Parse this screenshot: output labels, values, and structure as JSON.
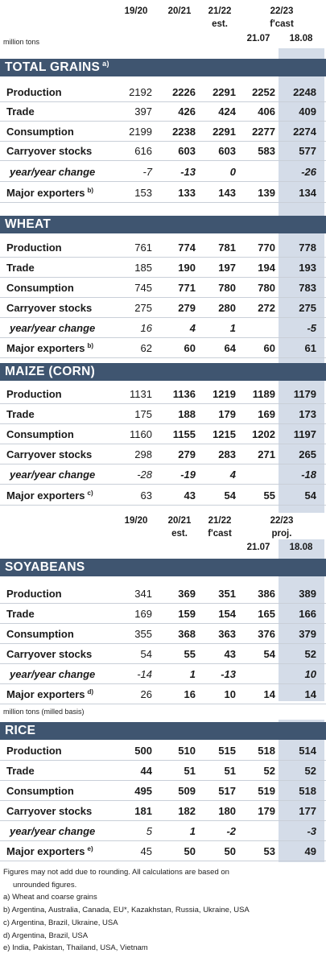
{
  "header1": {
    "c1": "19/20",
    "c2": "20/21",
    "c3": "21/22",
    "c3b": "est.",
    "c4": "22/23",
    "c4b": "f'cast",
    "d1": "21.07",
    "d2": "18.08"
  },
  "header1_unit": "million tons",
  "header2": {
    "c1": "19/20",
    "c2": "20/21",
    "c2b": "est.",
    "c3": "21/22",
    "c3b": "f'cast",
    "c4": "22/23",
    "c4b": "proj.",
    "d1": "21.07",
    "d2": "18.08"
  },
  "rice_unit": "million tons (milled basis)",
  "sections": {
    "total_grains": {
      "title": "TOTAL GRAINS",
      "sup": "a)",
      "rows": [
        {
          "label": "Production",
          "sup": "",
          "v": [
            "2192",
            "2226",
            "2291",
            "2252",
            "2248"
          ]
        },
        {
          "label": "Trade",
          "sup": "",
          "v": [
            "397",
            "426",
            "424",
            "406",
            "409"
          ]
        },
        {
          "label": "Consumption",
          "sup": "",
          "v": [
            "2199",
            "2238",
            "2291",
            "2277",
            "2274"
          ]
        },
        {
          "label": "Carryover stocks",
          "sup": "",
          "v": [
            "616",
            "603",
            "603",
            "583",
            "577"
          ]
        },
        {
          "label": "year/year change",
          "sup": "",
          "v": [
            "-7",
            "-13",
            "0",
            "",
            "-26"
          ]
        },
        {
          "label": "Major exporters",
          "sup": "b)",
          "v": [
            "153",
            "133",
            "143",
            "139",
            "134"
          ]
        }
      ]
    },
    "wheat": {
      "title": "WHEAT",
      "sup": "",
      "rows": [
        {
          "label": "Production",
          "sup": "",
          "v": [
            "761",
            "774",
            "781",
            "770",
            "778"
          ]
        },
        {
          "label": "Trade",
          "sup": "",
          "v": [
            "185",
            "190",
            "197",
            "194",
            "193"
          ]
        },
        {
          "label": "Consumption",
          "sup": "",
          "v": [
            "745",
            "771",
            "780",
            "780",
            "783"
          ]
        },
        {
          "label": "Carryover stocks",
          "sup": "",
          "v": [
            "275",
            "279",
            "280",
            "272",
            "275"
          ]
        },
        {
          "label": "year/year change",
          "sup": "",
          "v": [
            "16",
            "4",
            "1",
            "",
            "-5"
          ]
        },
        {
          "label": "Major exporters",
          "sup": "b)",
          "v": [
            "62",
            "60",
            "64",
            "60",
            "61"
          ]
        }
      ]
    },
    "maize": {
      "title": "MAIZE (CORN)",
      "sup": "",
      "rows": [
        {
          "label": "Production",
          "sup": "",
          "v": [
            "1131",
            "1136",
            "1219",
            "1189",
            "1179"
          ]
        },
        {
          "label": "Trade",
          "sup": "",
          "v": [
            "175",
            "188",
            "179",
            "169",
            "173"
          ]
        },
        {
          "label": "Consumption",
          "sup": "",
          "v": [
            "1160",
            "1155",
            "1215",
            "1202",
            "1197"
          ]
        },
        {
          "label": "Carryover stocks",
          "sup": "",
          "v": [
            "298",
            "279",
            "283",
            "271",
            "265"
          ]
        },
        {
          "label": "year/year change",
          "sup": "",
          "v": [
            "-28",
            "-19",
            "4",
            "",
            "-18"
          ]
        },
        {
          "label": "Major exporters",
          "sup": "c)",
          "v": [
            "63",
            "43",
            "54",
            "55",
            "54"
          ]
        }
      ]
    },
    "soyabeans": {
      "title": "SOYABEANS",
      "sup": "",
      "rows": [
        {
          "label": "Production",
          "sup": "",
          "v": [
            "341",
            "369",
            "351",
            "386",
            "389"
          ]
        },
        {
          "label": "Trade",
          "sup": "",
          "v": [
            "169",
            "159",
            "154",
            "165",
            "166"
          ]
        },
        {
          "label": "Consumption",
          "sup": "",
          "v": [
            "355",
            "368",
            "363",
            "376",
            "379"
          ]
        },
        {
          "label": "Carryover stocks",
          "sup": "",
          "v": [
            "54",
            "55",
            "43",
            "54",
            "52"
          ]
        },
        {
          "label": "year/year change",
          "sup": "",
          "v": [
            "-14",
            "1",
            "-13",
            "",
            "10"
          ]
        },
        {
          "label": "Major exporters",
          "sup": "d)",
          "v": [
            "26",
            "16",
            "10",
            "14",
            "14"
          ]
        }
      ]
    },
    "rice": {
      "title": "RICE",
      "sup": "",
      "rows": [
        {
          "label": "Production",
          "sup": "",
          "v": [
            "500",
            "510",
            "515",
            "518",
            "514"
          ]
        },
        {
          "label": "Trade",
          "sup": "",
          "v": [
            "44",
            "51",
            "51",
            "52",
            "52"
          ]
        },
        {
          "label": "Consumption",
          "sup": "",
          "v": [
            "495",
            "509",
            "517",
            "519",
            "518"
          ]
        },
        {
          "label": "Carryover stocks",
          "sup": "",
          "v": [
            "181",
            "182",
            "180",
            "179",
            "177"
          ]
        },
        {
          "label": "year/year change",
          "sup": "",
          "v": [
            "5",
            "1",
            "-2",
            "",
            "-3"
          ]
        },
        {
          "label": "Major exporters",
          "sup": "e)",
          "v": [
            "45",
            "50",
            "50",
            "53",
            "49"
          ]
        }
      ]
    }
  },
  "notes": [
    "Figures may not add due to rounding. All calculations are based on",
    "unrounded figures.",
    "a) Wheat and coarse grains",
    "b) Argentina, Australia, Canada, EU*, Kazakhstan, Russia, Ukraine, USA",
    "c) Argentina, Brazil, Ukraine, USA",
    "d) Argentina, Brazil, USA",
    "e) India, Pakistan, Thailand, USA, Vietnam"
  ],
  "colors": {
    "band": "#3f5570",
    "shade": "#d4dce8",
    "rule": "#c9cfd8"
  }
}
